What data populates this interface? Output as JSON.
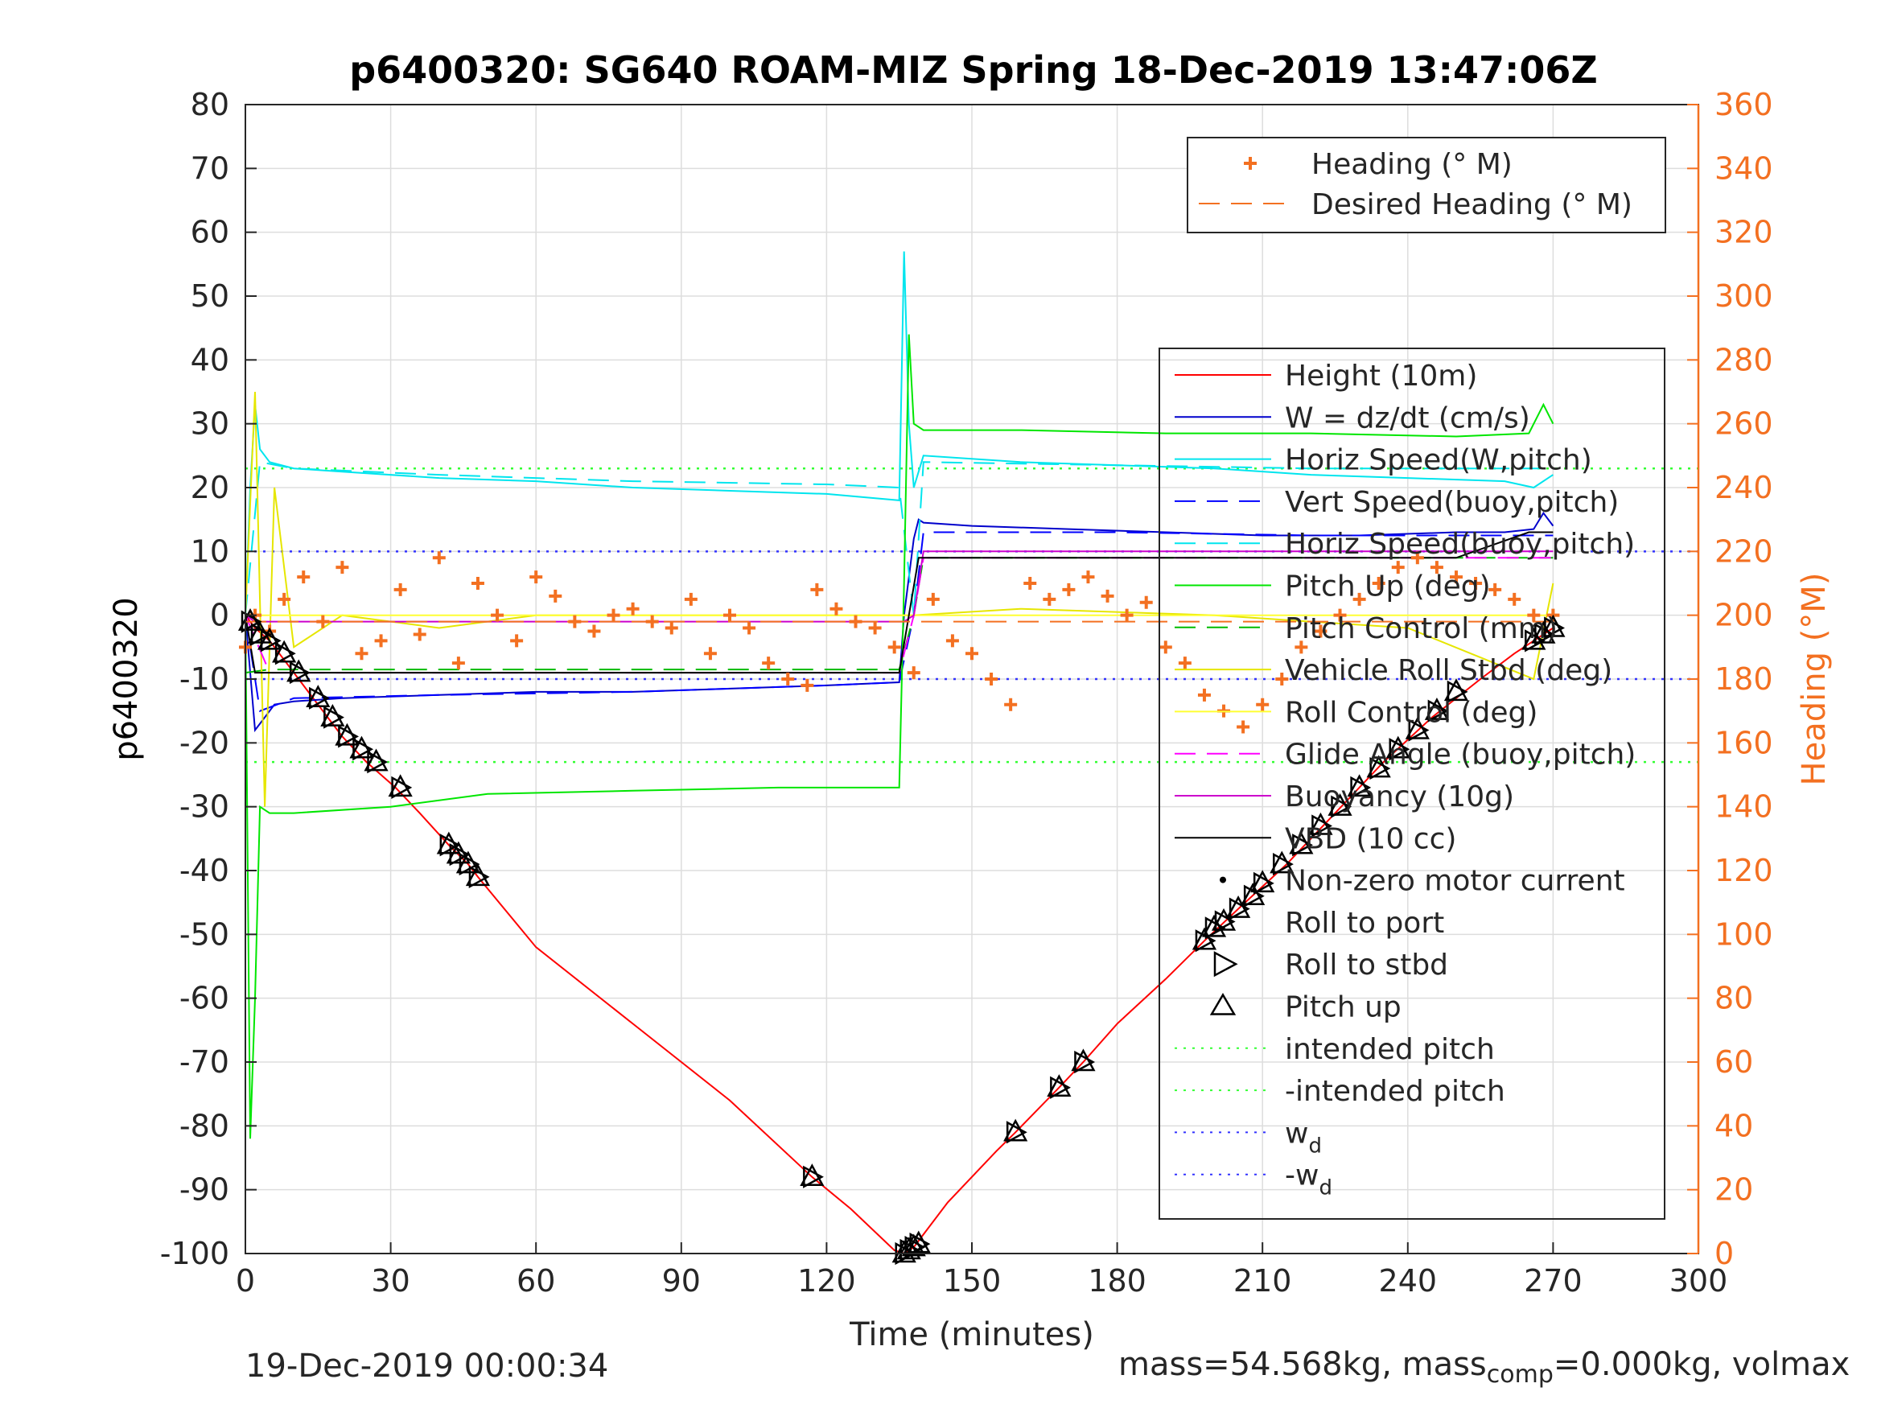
{
  "chart_data": {
    "type": "line",
    "title": "p6400320: SG640 ROAM-MIZ Spring 18-Dec-2019 13:47:06Z",
    "xlabel": "Time (minutes)",
    "ylabel": "p6400320",
    "ylabel_right": "Heading (°M)",
    "xlim": [
      0,
      300
    ],
    "ylim": [
      -100,
      80
    ],
    "ylim_right": [
      0,
      360
    ],
    "x_ticks": [
      0,
      30,
      60,
      90,
      120,
      150,
      180,
      210,
      240,
      270,
      300
    ],
    "y_ticks": [
      -100,
      -90,
      -80,
      -70,
      -60,
      -50,
      -40,
      -30,
      -20,
      -10,
      0,
      10,
      20,
      30,
      40,
      50,
      60,
      70,
      80
    ],
    "y_ticks_right": [
      0,
      20,
      40,
      60,
      80,
      100,
      120,
      140,
      160,
      180,
      200,
      220,
      240,
      260,
      280,
      300,
      320,
      340,
      360
    ],
    "grid": true,
    "right_axis_color": "#f37021",
    "series": [
      {
        "name": "Height (10m)",
        "color": "#ff0000",
        "style": "solid",
        "x": [
          0,
          2,
          5,
          8,
          12,
          16,
          20,
          25,
          31,
          36,
          42,
          46,
          48,
          60,
          80,
          100,
          117,
          125,
          134,
          136,
          138,
          145,
          155,
          159,
          168,
          173,
          180,
          190,
          198,
          205,
          215,
          225,
          235,
          245,
          255,
          262,
          266,
          270
        ],
        "y": [
          0,
          -2,
          -4,
          -7,
          -11,
          -15,
          -19,
          -23,
          -27,
          -31,
          -36,
          -39,
          -41,
          -52,
          -64,
          -76,
          -88,
          -93,
          -99.5,
          -100,
          -99,
          -92,
          -84,
          -81,
          -74,
          -70,
          -64,
          -57,
          -51,
          -46,
          -39,
          -31,
          -23,
          -16,
          -10,
          -6,
          -4,
          -2
        ]
      },
      {
        "name": "W = dz/dt (cm/s)",
        "color": "#0000cc",
        "style": "solid",
        "x": [
          0,
          2,
          4,
          6,
          10,
          20,
          40,
          60,
          80,
          100,
          120,
          135,
          136,
          138,
          139,
          140,
          150,
          170,
          190,
          210,
          230,
          250,
          260,
          266,
          268,
          270
        ],
        "y": [
          0,
          -18,
          -16,
          -14,
          -13.5,
          -13,
          -12.5,
          -12,
          -12,
          -11.5,
          -11,
          -10.5,
          0,
          12,
          15,
          14.5,
          14,
          13.5,
          13,
          12.5,
          12.5,
          13,
          13,
          13.5,
          16,
          14
        ]
      },
      {
        "name": "Horiz Speed(W,pitch)",
        "color": "#00e5ee",
        "style": "solid",
        "x": [
          0,
          1,
          2,
          3,
          5,
          10,
          20,
          40,
          60,
          80,
          100,
          120,
          135,
          136,
          137,
          138,
          140,
          160,
          180,
          200,
          220,
          240,
          260,
          266,
          270
        ],
        "y": [
          0,
          20,
          33,
          26,
          24,
          23,
          22.5,
          21.5,
          21,
          20,
          19.5,
          19,
          18,
          57,
          30,
          20,
          25,
          24,
          23.5,
          23,
          22,
          21.5,
          21,
          20,
          22
        ]
      },
      {
        "name": "Vert Speed(buoy,pitch)",
        "color": "#0000ff",
        "style": "dashed",
        "x": [
          0,
          3,
          10,
          40,
          80,
          120,
          135,
          138,
          140,
          180,
          220,
          260,
          270
        ],
        "y": [
          0,
          -15,
          -13,
          -12.5,
          -12,
          -11,
          -10.5,
          0,
          13,
          13,
          12.5,
          12.5,
          12.5
        ]
      },
      {
        "name": "Horiz Speed(buoy,pitch)",
        "color": "#00e5ee",
        "style": "dashed",
        "x": [
          0,
          3,
          10,
          40,
          80,
          120,
          135,
          138,
          140,
          180,
          220,
          260,
          270
        ],
        "y": [
          0,
          24,
          23,
          22,
          21,
          20.5,
          20,
          0,
          24,
          23.5,
          23,
          23,
          23
        ]
      },
      {
        "name": "Pitch Up (deg)",
        "color": "#00e600",
        "style": "solid",
        "x": [
          0,
          1,
          2,
          3,
          5,
          10,
          30,
          50,
          80,
          110,
          135,
          136,
          137,
          138,
          140,
          160,
          190,
          220,
          250,
          265,
          268,
          270
        ],
        "y": [
          0,
          -82,
          -60,
          -30,
          -31,
          -31,
          -30,
          -28,
          -27.5,
          -27,
          -27,
          5,
          44,
          30,
          29,
          29,
          28.5,
          28.5,
          28,
          28.5,
          33,
          30
        ]
      },
      {
        "name": "Pitch Control (mm)",
        "color": "#00bb00",
        "style": "dashed",
        "x": [
          0,
          5,
          60,
          135,
          138,
          140,
          200,
          270
        ],
        "y": [
          -9,
          -8.5,
          -8.5,
          -8.5,
          0,
          9,
          9,
          9
        ]
      },
      {
        "name": "Vehicle Roll Stbd (deg)",
        "color": "#e6e600",
        "style": "solid",
        "x": [
          0,
          2,
          4,
          6,
          10,
          20,
          40,
          60,
          100,
          130,
          138,
          160,
          200,
          240,
          266,
          270
        ],
        "y": [
          0,
          35,
          -30,
          20,
          -5,
          0,
          -2,
          0,
          0,
          0,
          0,
          1,
          0,
          -2,
          -10,
          5
        ]
      },
      {
        "name": "Roll Control (deg)",
        "color": "#ffff33",
        "style": "solid",
        "x": [
          0,
          5,
          60,
          135,
          138,
          270
        ],
        "y": [
          0,
          0,
          0,
          0,
          0,
          0
        ]
      },
      {
        "name": "Glide Angle (buoy,pitch)",
        "color": "#ff00ff",
        "style": "dashed",
        "x": [
          0,
          5,
          60,
          135,
          138,
          140,
          200,
          270
        ],
        "y": [
          0,
          -9,
          -9,
          -9,
          0,
          9,
          9,
          9
        ]
      },
      {
        "name": "Buoyancy (10g)",
        "color": "#cc00cc",
        "style": "solid",
        "x": [
          0,
          2,
          10,
          60,
          136,
          138,
          140,
          200,
          270
        ],
        "y": [
          0,
          -1,
          -1,
          -1,
          -1,
          0,
          10,
          10,
          10
        ]
      },
      {
        "name": "VBD (10 cc)",
        "color": "#000000",
        "style": "solid",
        "x": [
          0,
          2,
          10,
          60,
          135,
          137,
          139,
          160,
          200,
          250,
          265,
          270
        ],
        "y": [
          0,
          -9,
          -9,
          -9,
          -9,
          0,
          9,
          9,
          9,
          9,
          13,
          13
        ]
      }
    ],
    "heading": {
      "name": "Heading (° M)",
      "color": "#f37021",
      "marker": "+",
      "x": [
        0,
        2,
        5,
        8,
        12,
        16,
        20,
        24,
        28,
        32,
        36,
        40,
        44,
        48,
        52,
        56,
        60,
        64,
        68,
        72,
        76,
        80,
        84,
        88,
        92,
        96,
        100,
        104,
        108,
        112,
        116,
        118,
        122,
        126,
        130,
        134,
        138,
        142,
        146,
        150,
        154,
        158,
        162,
        166,
        170,
        174,
        178,
        182,
        186,
        190,
        194,
        198,
        202,
        206,
        210,
        214,
        218,
        222,
        226,
        230,
        234,
        238,
        242,
        246,
        250,
        254,
        258,
        262,
        266,
        270
      ],
      "y": [
        190,
        200,
        195,
        205,
        212,
        198,
        215,
        188,
        192,
        208,
        194,
        218,
        185,
        210,
        200,
        192,
        212,
        206,
        198,
        195,
        200,
        202,
        198,
        196,
        205,
        188,
        200,
        196,
        185,
        180,
        178,
        208,
        202,
        198,
        196,
        190,
        182,
        205,
        192,
        188,
        180,
        172,
        210,
        205,
        208,
        212,
        206,
        200,
        204,
        190,
        185,
        175,
        170,
        165,
        172,
        180,
        190,
        195,
        200,
        205,
        210,
        215,
        218,
        215,
        212,
        210,
        208,
        205,
        200,
        200
      ]
    },
    "desired_heading": {
      "name": "Desired Heading (° M)",
      "color": "#f37021",
      "style": "dashed",
      "x": [
        0,
        135,
        138,
        270
      ],
      "y": [
        198,
        198,
        198,
        198
      ]
    },
    "reference_lines": [
      {
        "name": "intended pitch",
        "color": "#33ff33",
        "style": "dotted",
        "y": 23
      },
      {
        "name": "-intended pitch",
        "color": "#33ff33",
        "style": "dotted",
        "y": -23
      },
      {
        "name": "w_d",
        "color": "#3333ff",
        "style": "dotted",
        "y": 10
      },
      {
        "name": "-w_d",
        "color": "#3333ff",
        "style": "dotted",
        "y": -10
      }
    ],
    "markers": {
      "pitch_up": {
        "name": "Pitch up",
        "x": [
          1,
          3,
          5,
          8,
          11,
          15,
          18,
          21,
          24,
          27,
          32,
          42,
          44,
          46,
          48,
          117,
          136,
          137,
          138,
          139,
          159,
          168,
          173,
          198,
          200,
          202,
          205,
          208,
          210,
          214,
          218,
          222,
          226,
          230,
          234,
          238,
          242,
          246,
          250,
          266,
          268,
          270
        ],
        "y": [
          -1,
          -3,
          -4,
          -6,
          -9,
          -13,
          -16,
          -19,
          -21,
          -23,
          -27,
          -36,
          -37.5,
          -39,
          -41,
          -88,
          -100,
          -99.5,
          -99,
          -98.5,
          -81,
          -74,
          -70,
          -51,
          -49,
          -48,
          -46,
          -44,
          -42,
          -39,
          -36,
          -33,
          -30,
          -27,
          -24,
          -21,
          -18,
          -15,
          -12,
          -4,
          -3,
          -2
        ]
      },
      "roll_to_stbd": {
        "name": "Roll to stbd"
      },
      "roll_to_port": {
        "name": "Roll to port"
      },
      "motor_current": {
        "name": "Non-zero motor current"
      }
    },
    "legend_right": {
      "placement": "top-right",
      "entries": [
        "Heading (° M)",
        "Desired Heading (° M)"
      ]
    },
    "legend_main": {
      "placement": "right",
      "entries": [
        "Height (10m)",
        "W = dz/dt (cm/s)",
        "Horiz Speed(W,pitch)",
        "Vert Speed(buoy,pitch)",
        "Horiz Speed(buoy,pitch)",
        "Pitch Up (deg)",
        "Pitch Control (mm)",
        "Vehicle Roll Stbd (deg)",
        "Roll Control (deg)",
        "Glide Angle (buoy,pitch)",
        "Buoyancy (10g)",
        "VBD (10 cc)",
        "Non-zero motor current",
        "Roll to port",
        "Roll to stbd",
        "Pitch up",
        "intended pitch",
        "-intended pitch",
        "w",
        "-w"
      ]
    }
  },
  "footer": {
    "timestamp": "19-Dec-2019 00:00:34",
    "mass_prefix": "mass=54.568kg, mass",
    "mass_sub": "comp",
    "mass_suffix": "=0.000kg, volmax"
  }
}
